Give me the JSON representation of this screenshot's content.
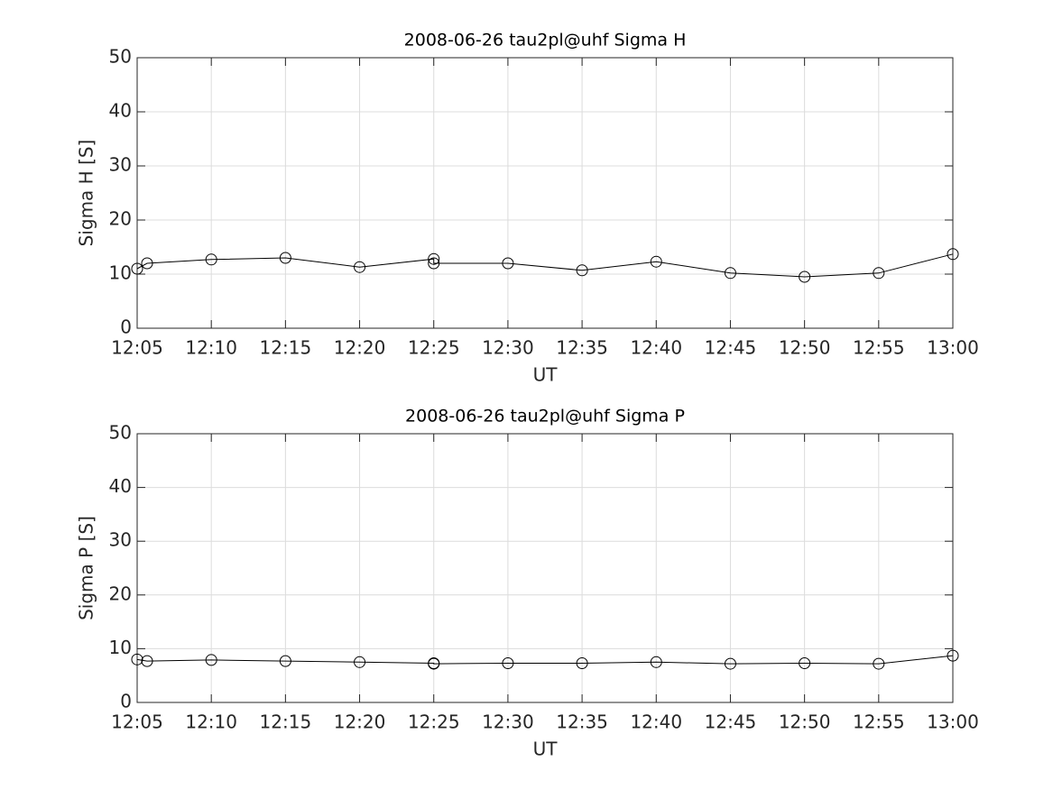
{
  "chart_data": [
    {
      "type": "line",
      "title": "2008-06-26  tau2pl@uhf Sigma H",
      "xlabel": "UT",
      "ylabel": "Sigma H [S]",
      "x": [
        725,
        725.67,
        730,
        735,
        740,
        745,
        745,
        750,
        755,
        760,
        765,
        770,
        775,
        780
      ],
      "values": [
        11.0,
        12.0,
        12.7,
        13.0,
        11.3,
        12.8,
        12.0,
        12.0,
        10.7,
        12.3,
        10.2,
        9.5,
        10.2,
        13.7
      ],
      "color": "#000000",
      "marker": "circle",
      "xlim": [
        725,
        780
      ],
      "xticks": [
        {
          "value": 725,
          "label": "12:05"
        },
        {
          "value": 730,
          "label": "12:10"
        },
        {
          "value": 735,
          "label": "12:15"
        },
        {
          "value": 740,
          "label": "12:20"
        },
        {
          "value": 745,
          "label": "12:25"
        },
        {
          "value": 750,
          "label": "12:30"
        },
        {
          "value": 755,
          "label": "12:35"
        },
        {
          "value": 760,
          "label": "12:40"
        },
        {
          "value": 765,
          "label": "12:45"
        },
        {
          "value": 770,
          "label": "12:50"
        },
        {
          "value": 775,
          "label": "12:55"
        },
        {
          "value": 780,
          "label": "13:00"
        }
      ],
      "ylim": [
        0,
        50
      ],
      "yticks": [
        0,
        10,
        20,
        30,
        40,
        50
      ],
      "grid": true
    },
    {
      "type": "line",
      "title": "2008-06-26  tau2pl@uhf Sigma P",
      "xlabel": "UT",
      "ylabel": "Sigma P [S]",
      "x": [
        725,
        725.67,
        730,
        735,
        740,
        745,
        745,
        750,
        755,
        760,
        765,
        770,
        775,
        780
      ],
      "values": [
        8.0,
        7.7,
        7.9,
        7.7,
        7.5,
        7.3,
        7.2,
        7.3,
        7.3,
        7.5,
        7.2,
        7.3,
        7.2,
        8.7
      ],
      "color": "#000000",
      "marker": "circle",
      "xlim": [
        725,
        780
      ],
      "xticks": [
        {
          "value": 725,
          "label": "12:05"
        },
        {
          "value": 730,
          "label": "12:10"
        },
        {
          "value": 735,
          "label": "12:15"
        },
        {
          "value": 740,
          "label": "12:20"
        },
        {
          "value": 745,
          "label": "12:25"
        },
        {
          "value": 750,
          "label": "12:30"
        },
        {
          "value": 755,
          "label": "12:35"
        },
        {
          "value": 760,
          "label": "12:40"
        },
        {
          "value": 765,
          "label": "12:45"
        },
        {
          "value": 770,
          "label": "12:50"
        },
        {
          "value": 775,
          "label": "12:55"
        },
        {
          "value": 780,
          "label": "13:00"
        }
      ],
      "ylim": [
        0,
        50
      ],
      "yticks": [
        0,
        10,
        20,
        30,
        40,
        50
      ],
      "grid": true
    }
  ]
}
